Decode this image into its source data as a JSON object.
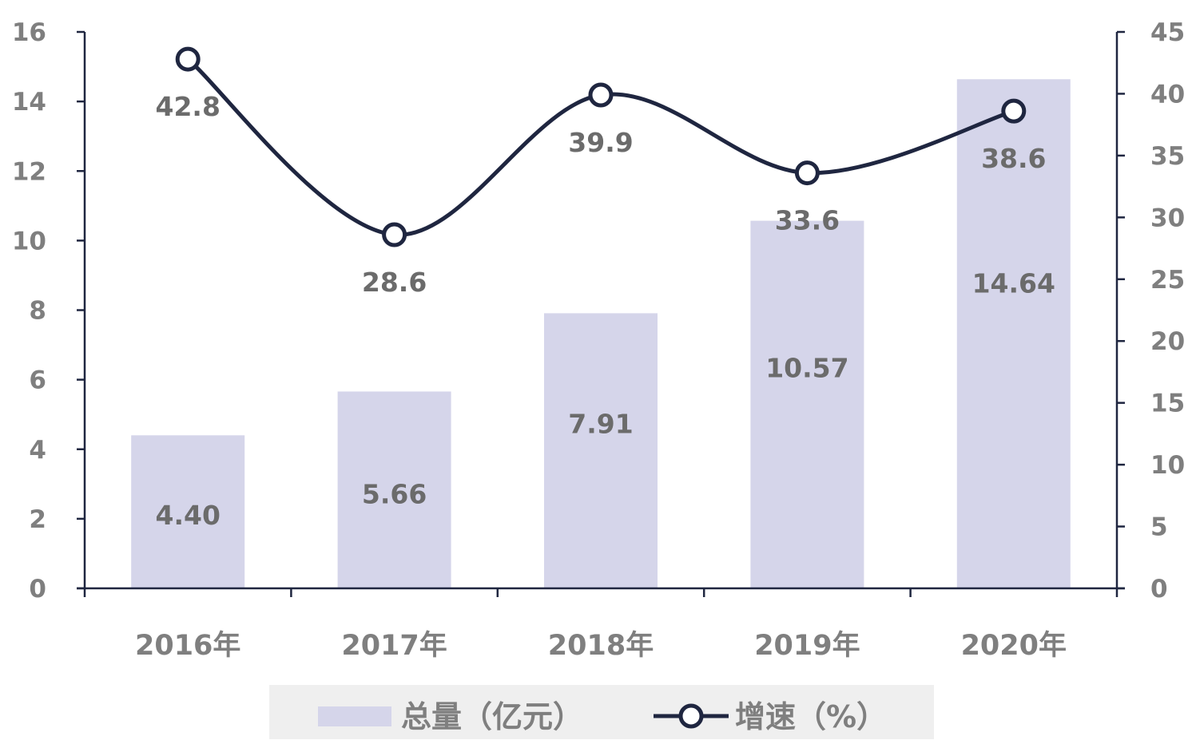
{
  "chart_data": {
    "type": "bar",
    "categories": [
      "2016年",
      "2017年",
      "2018年",
      "2019年",
      "2020年"
    ],
    "series": [
      {
        "name": "总量（亿元）",
        "type": "bar",
        "axis": "left",
        "values": [
          4.4,
          5.66,
          7.91,
          10.57,
          14.64
        ],
        "labels": [
          "4.40",
          "5.66",
          "7.91",
          "10.57",
          "14.64"
        ]
      },
      {
        "name": "增速（%）",
        "type": "line",
        "axis": "right",
        "smooth": true,
        "values": [
          42.8,
          28.6,
          39.9,
          33.6,
          38.6
        ],
        "labels": [
          "42.8",
          "28.6",
          "39.9",
          "33.6",
          "38.6"
        ]
      }
    ],
    "y_left": {
      "range": [
        0,
        16
      ],
      "ticks": [
        "0",
        "2",
        "4",
        "6",
        "8",
        "10",
        "12",
        "14",
        "16"
      ]
    },
    "y_right": {
      "range": [
        0,
        45
      ],
      "ticks": [
        "0",
        "5",
        "10",
        "15",
        "20",
        "25",
        "30",
        "35",
        "40",
        "45"
      ]
    },
    "grid": false,
    "legend_position": "bottom"
  },
  "colors": {
    "bar": "#d5d5ea",
    "line": "#1f2640",
    "axis": "#1f2640",
    "tick_text": "#7f7f7f",
    "data_label": "#6b6b6b",
    "legend_bg": "#efefef"
  }
}
